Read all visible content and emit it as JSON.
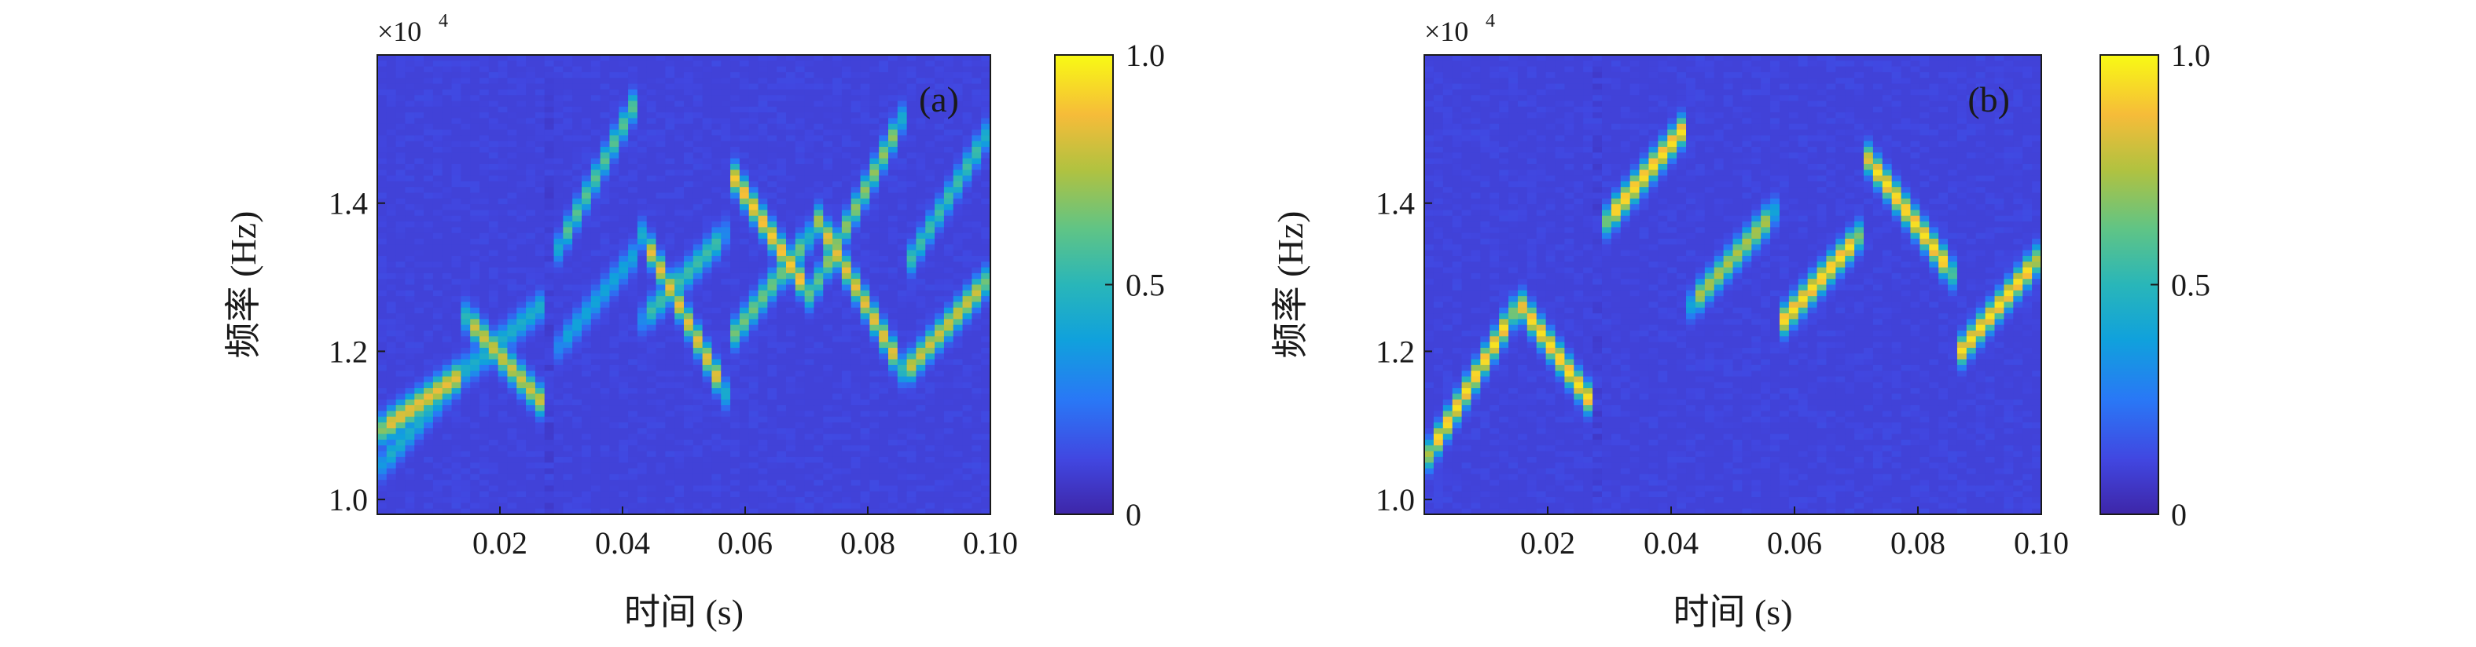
{
  "chart_data": [
    {
      "type": "heatmap",
      "panel_label": "(a)",
      "xlabel": "时间 (s)",
      "ylabel": "频率 (Hz)",
      "y_exponent": "×10",
      "y_exponent_power": "4",
      "xlim": [
        0,
        0.1
      ],
      "ylim": [
        9800,
        16000
      ],
      "x_ticks": [
        0.02,
        0.04,
        0.06,
        0.08,
        0.1
      ],
      "x_tick_labels": [
        "0.02",
        "0.04",
        "0.06",
        "0.08",
        "0.10"
      ],
      "y_ticks": [
        10000,
        12000,
        14000
      ],
      "y_tick_labels": [
        "1.0",
        "1.2",
        "1.4"
      ],
      "colorbar": {
        "range": [
          0,
          1
        ],
        "ticks": [
          0,
          0.5,
          1.0
        ],
        "tick_labels": [
          "0",
          "0.5",
          "1.0"
        ],
        "colormap": "parula"
      },
      "ridges": [
        {
          "x": [
            0.0,
            0.014
          ],
          "y": [
            10900,
            11700
          ],
          "peak": 0.85
        },
        {
          "x": [
            0.0,
            0.016
          ],
          "y": [
            10400,
            11900
          ],
          "peak": 0.45
        },
        {
          "x": [
            0.014,
            0.028
          ],
          "y": [
            12500,
            11200
          ],
          "peak": 0.8
        },
        {
          "x": [
            0.014,
            0.028
          ],
          "y": [
            11700,
            12700
          ],
          "peak": 0.45
        },
        {
          "x": [
            0.029,
            0.043
          ],
          "y": [
            13300,
            15500
          ],
          "peak": 0.6
        },
        {
          "x": [
            0.029,
            0.043
          ],
          "y": [
            12000,
            13400
          ],
          "peak": 0.4
        },
        {
          "x": [
            0.043,
            0.057
          ],
          "y": [
            13600,
            11400
          ],
          "peak": 0.85
        },
        {
          "x": [
            0.043,
            0.057
          ],
          "y": [
            12400,
            13600
          ],
          "peak": 0.55
        },
        {
          "x": [
            0.057,
            0.071
          ],
          "y": [
            14500,
            12700
          ],
          "peak": 0.9
        },
        {
          "x": [
            0.057,
            0.071
          ],
          "y": [
            12100,
            13600
          ],
          "peak": 0.65
        },
        {
          "x": [
            0.071,
            0.086
          ],
          "y": [
            12800,
            15200
          ],
          "peak": 0.7
        },
        {
          "x": [
            0.071,
            0.086
          ],
          "y": [
            13900,
            11700
          ],
          "peak": 0.85
        },
        {
          "x": [
            0.086,
            0.1
          ],
          "y": [
            11700,
            13000
          ],
          "peak": 0.8
        },
        {
          "x": [
            0.086,
            0.1
          ],
          "y": [
            13100,
            15000
          ],
          "peak": 0.55
        }
      ]
    },
    {
      "type": "heatmap",
      "panel_label": "(b)",
      "xlabel": "时间 (s)",
      "ylabel": "频率 (Hz)",
      "y_exponent": "×10",
      "y_exponent_power": "4",
      "xlim": [
        0,
        0.1
      ],
      "ylim": [
        9800,
        16000
      ],
      "x_ticks": [
        0.02,
        0.04,
        0.06,
        0.08,
        0.1
      ],
      "x_tick_labels": [
        "0.02",
        "0.04",
        "0.06",
        "0.08",
        "0.10"
      ],
      "y_ticks": [
        10000,
        12000,
        14000
      ],
      "y_tick_labels": [
        "1.0",
        "1.2",
        "1.4"
      ],
      "colorbar": {
        "range": [
          0,
          1
        ],
        "ticks": [
          0,
          0.5,
          1.0
        ],
        "tick_labels": [
          "0",
          "0.5",
          "1.0"
        ],
        "colormap": "parula"
      },
      "ridges": [
        {
          "x": [
            0.0,
            0.015
          ],
          "y": [
            10500,
            12600
          ],
          "peak": 0.95
        },
        {
          "x": [
            0.015,
            0.028
          ],
          "y": [
            12700,
            11200
          ],
          "peak": 0.95
        },
        {
          "x": [
            0.029,
            0.043
          ],
          "y": [
            13700,
            15100
          ],
          "peak": 0.95
        },
        {
          "x": [
            0.043,
            0.057
          ],
          "y": [
            12600,
            13900
          ],
          "peak": 0.75
        },
        {
          "x": [
            0.057,
            0.071
          ],
          "y": [
            12300,
            13600
          ],
          "peak": 0.95
        },
        {
          "x": [
            0.071,
            0.086
          ],
          "y": [
            14700,
            13000
          ],
          "peak": 0.95
        },
        {
          "x": [
            0.086,
            0.1
          ],
          "y": [
            11900,
            13300
          ],
          "peak": 0.95
        }
      ]
    }
  ]
}
